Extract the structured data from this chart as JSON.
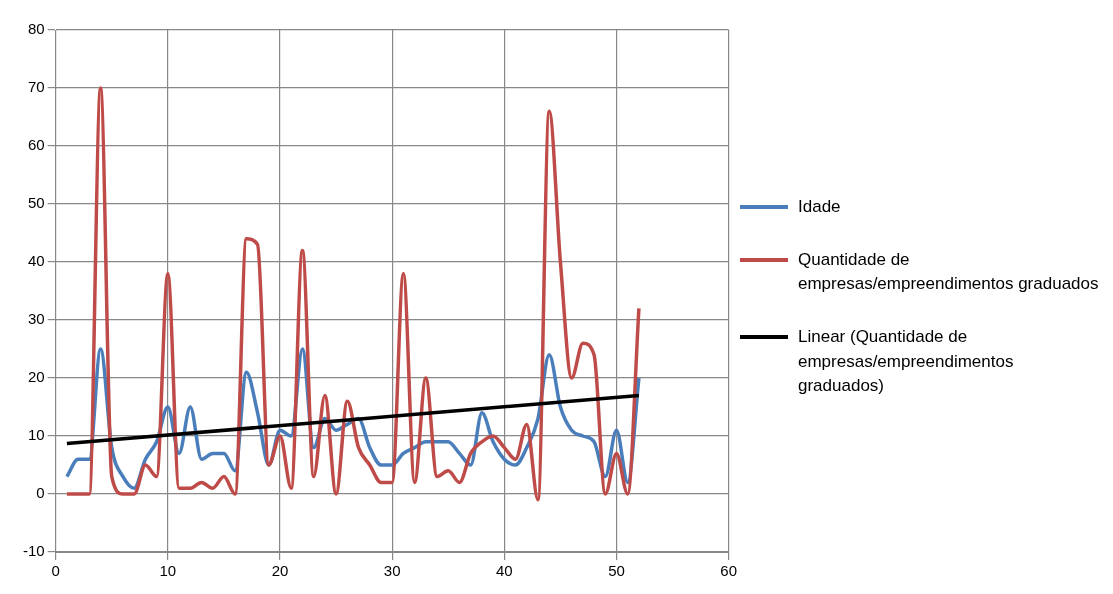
{
  "chart_data": {
    "type": "line",
    "x": [
      1,
      2,
      3,
      4,
      5,
      6,
      7,
      8,
      9,
      10,
      11,
      12,
      13,
      14,
      15,
      16,
      17,
      18,
      19,
      20,
      21,
      22,
      23,
      24,
      25,
      26,
      27,
      28,
      29,
      30,
      31,
      32,
      33,
      34,
      35,
      36,
      37,
      38,
      39,
      40,
      41,
      42,
      43,
      44,
      45,
      46,
      47,
      48,
      49,
      50,
      51,
      52
    ],
    "series": [
      {
        "name": "Idade",
        "color": "#4a7ebb",
        "values": [
          3,
          6,
          6,
          25,
          8,
          3,
          1,
          6,
          9,
          15,
          7,
          15,
          6,
          7,
          7,
          4,
          21,
          14,
          5,
          11,
          10,
          25,
          8,
          13,
          11,
          12,
          13,
          8,
          5,
          5,
          7,
          8,
          9,
          9,
          9,
          7,
          5,
          14,
          9,
          6,
          5,
          8,
          13,
          24,
          15,
          11,
          10,
          9,
          3,
          11,
          2,
          20
        ]
      },
      {
        "name": "Quantidade de empresas/empreendimentos graduados",
        "color": "#be4b48",
        "values": [
          0,
          0,
          0,
          70,
          3,
          0,
          0,
          5,
          3,
          38,
          1,
          1,
          2,
          1,
          3,
          0,
          44,
          43,
          5,
          10,
          1,
          42,
          3,
          17,
          0,
          16,
          8,
          5,
          2,
          2,
          38,
          2,
          20,
          3,
          4,
          2,
          7,
          9,
          10,
          8,
          6,
          12,
          -1,
          66,
          40,
          20,
          26,
          24,
          0,
          7,
          0,
          32
        ]
      },
      {
        "name": "Linear (Quantidade de empresas/empreendimentos graduados)",
        "color": "#000000",
        "x": [
          1,
          52
        ],
        "values": [
          8.7,
          17
        ]
      }
    ],
    "xlim": [
      0,
      60
    ],
    "xticks": [
      0,
      10,
      20,
      30,
      40,
      50,
      60
    ],
    "ylim": [
      -10,
      80
    ],
    "yticks": [
      -10,
      0,
      10,
      20,
      30,
      40,
      50,
      60,
      70,
      80
    ],
    "grid": true,
    "legend": "right",
    "marker": "none"
  }
}
